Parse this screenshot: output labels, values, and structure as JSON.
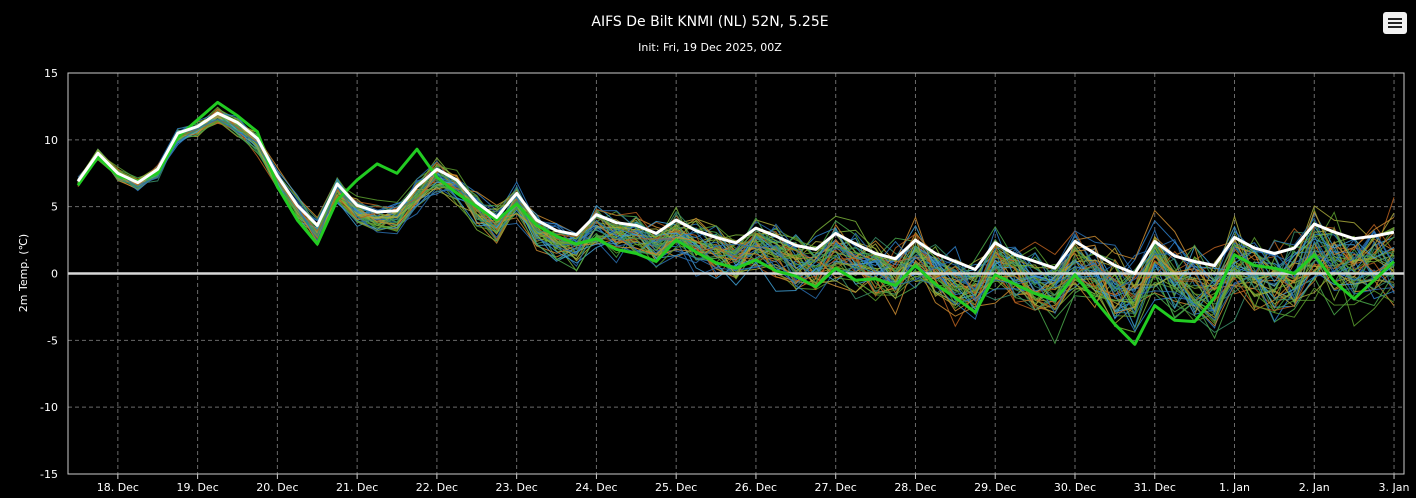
{
  "chart_data": {
    "type": "line",
    "title": "AIFS De Bilt KNMI (NL) 52N, 5.25E",
    "subtitle": "Init: Fri, 19 Dec 2025, 00Z",
    "ylabel": "2m Temp. (℃)",
    "xlabel": "",
    "ylim": [
      -15,
      15
    ],
    "yticks": [
      15,
      10,
      5,
      0,
      -5,
      -10,
      -15
    ],
    "xlim": [
      "2025-12-17T09:00",
      "2026-01-03T03:00"
    ],
    "xticks": [
      {
        "date": "2025-12-18T00:00",
        "label": "18. Dec"
      },
      {
        "date": "2025-12-19T00:00",
        "label": "19. Dec"
      },
      {
        "date": "2025-12-20T00:00",
        "label": "20. Dec"
      },
      {
        "date": "2025-12-21T00:00",
        "label": "21. Dec"
      },
      {
        "date": "2025-12-22T00:00",
        "label": "22. Dec"
      },
      {
        "date": "2025-12-23T00:00",
        "label": "23. Dec"
      },
      {
        "date": "2025-12-24T00:00",
        "label": "24. Dec"
      },
      {
        "date": "2025-12-25T00:00",
        "label": "25. Dec"
      },
      {
        "date": "2025-12-26T00:00",
        "label": "26. Dec"
      },
      {
        "date": "2025-12-27T00:00",
        "label": "27. Dec"
      },
      {
        "date": "2025-12-28T00:00",
        "label": "28. Dec"
      },
      {
        "date": "2025-12-29T00:00",
        "label": "29. Dec"
      },
      {
        "date": "2025-12-30T00:00",
        "label": "30. Dec"
      },
      {
        "date": "2025-12-31T00:00",
        "label": "31. Dec"
      },
      {
        "date": "2026-01-01T00:00",
        "label": "1. Jan"
      },
      {
        "date": "2026-01-02T00:00",
        "label": "2. Jan"
      },
      {
        "date": "2026-01-03T00:00",
        "label": "3. Jan"
      }
    ],
    "grid": true,
    "zero_line": true,
    "x_times": [
      "2025-12-17T12:00",
      "2025-12-17T18:00",
      "2025-12-18T00:00",
      "2025-12-18T06:00",
      "2025-12-18T12:00",
      "2025-12-18T18:00",
      "2025-12-19T00:00",
      "2025-12-19T06:00",
      "2025-12-19T12:00",
      "2025-12-19T18:00",
      "2025-12-20T00:00",
      "2025-12-20T06:00",
      "2025-12-20T12:00",
      "2025-12-20T18:00",
      "2025-12-21T00:00",
      "2025-12-21T06:00",
      "2025-12-21T12:00",
      "2025-12-21T18:00",
      "2025-12-22T00:00",
      "2025-12-22T06:00",
      "2025-12-22T12:00",
      "2025-12-22T18:00",
      "2025-12-23T00:00",
      "2025-12-23T06:00",
      "2025-12-23T12:00",
      "2025-12-23T18:00",
      "2025-12-24T00:00",
      "2025-12-24T06:00",
      "2025-12-24T12:00",
      "2025-12-24T18:00",
      "2025-12-25T00:00",
      "2025-12-25T06:00",
      "2025-12-25T12:00",
      "2025-12-25T18:00",
      "2025-12-26T00:00",
      "2025-12-26T06:00",
      "2025-12-26T12:00",
      "2025-12-26T18:00",
      "2025-12-27T00:00",
      "2025-12-27T06:00",
      "2025-12-27T12:00",
      "2025-12-27T18:00",
      "2025-12-28T00:00",
      "2025-12-28T06:00",
      "2025-12-28T12:00",
      "2025-12-28T18:00",
      "2025-12-29T00:00",
      "2025-12-29T06:00",
      "2025-12-29T12:00",
      "2025-12-29T18:00",
      "2025-12-30T00:00",
      "2025-12-30T06:00",
      "2025-12-30T12:00",
      "2025-12-30T18:00",
      "2025-12-31T00:00",
      "2025-12-31T06:00",
      "2025-12-31T12:00",
      "2025-12-31T18:00",
      "2026-01-01T00:00",
      "2026-01-01T06:00",
      "2026-01-01T12:00",
      "2026-01-01T18:00",
      "2026-01-02T00:00",
      "2026-01-02T06:00",
      "2026-01-02T12:00",
      "2026-01-02T18:00",
      "2026-01-03T00:00"
    ],
    "mean_series": {
      "color": "#ffffff",
      "values": [
        6.9,
        9.0,
        7.5,
        6.8,
        7.8,
        10.5,
        11.0,
        12.0,
        11.3,
        10.1,
        7.3,
        5.1,
        3.6,
        6.7,
        5.1,
        4.6,
        4.7,
        6.5,
        7.8,
        7.0,
        5.3,
        4.2,
        6.0,
        4.0,
        3.2,
        2.9,
        4.4,
        3.8,
        3.6,
        3.0,
        4.0,
        3.2,
        2.7,
        2.3,
        3.4,
        2.8,
        2.1,
        1.8,
        3.0,
        2.2,
        1.5,
        1.1,
        2.5,
        1.5,
        0.9,
        0.3,
        2.3,
        1.4,
        0.9,
        0.4,
        2.4,
        1.5,
        0.6,
        0.0,
        2.4,
        1.3,
        0.9,
        0.6,
        2.7,
        1.9,
        1.5,
        1.9,
        3.7,
        3.1,
        2.6,
        2.8,
        3.1
      ]
    },
    "control_series": {
      "color": "#22cc22",
      "values": [
        6.6,
        8.7,
        7.3,
        6.9,
        7.5,
        10.2,
        11.5,
        12.8,
        11.8,
        10.6,
        6.5,
        4.0,
        2.2,
        5.5,
        7.0,
        8.2,
        7.5,
        9.3,
        7.2,
        6.0,
        5.0,
        4.0,
        5.2,
        3.6,
        2.8,
        2.2,
        2.6,
        1.8,
        1.5,
        0.9,
        2.5,
        1.6,
        0.8,
        0.4,
        1.0,
        0.2,
        -0.2,
        -1.0,
        0.4,
        -0.5,
        -0.4,
        -0.9,
        0.6,
        -0.8,
        -1.8,
        -2.9,
        -0.1,
        -0.8,
        -1.5,
        -2.0,
        -0.1,
        -2.0,
        -3.8,
        -5.3,
        -2.4,
        -3.5,
        -3.6,
        -1.8,
        1.4,
        0.6,
        0.4,
        0.0,
        1.4,
        -0.6,
        -1.9,
        -0.5,
        0.9
      ]
    }
  }
}
